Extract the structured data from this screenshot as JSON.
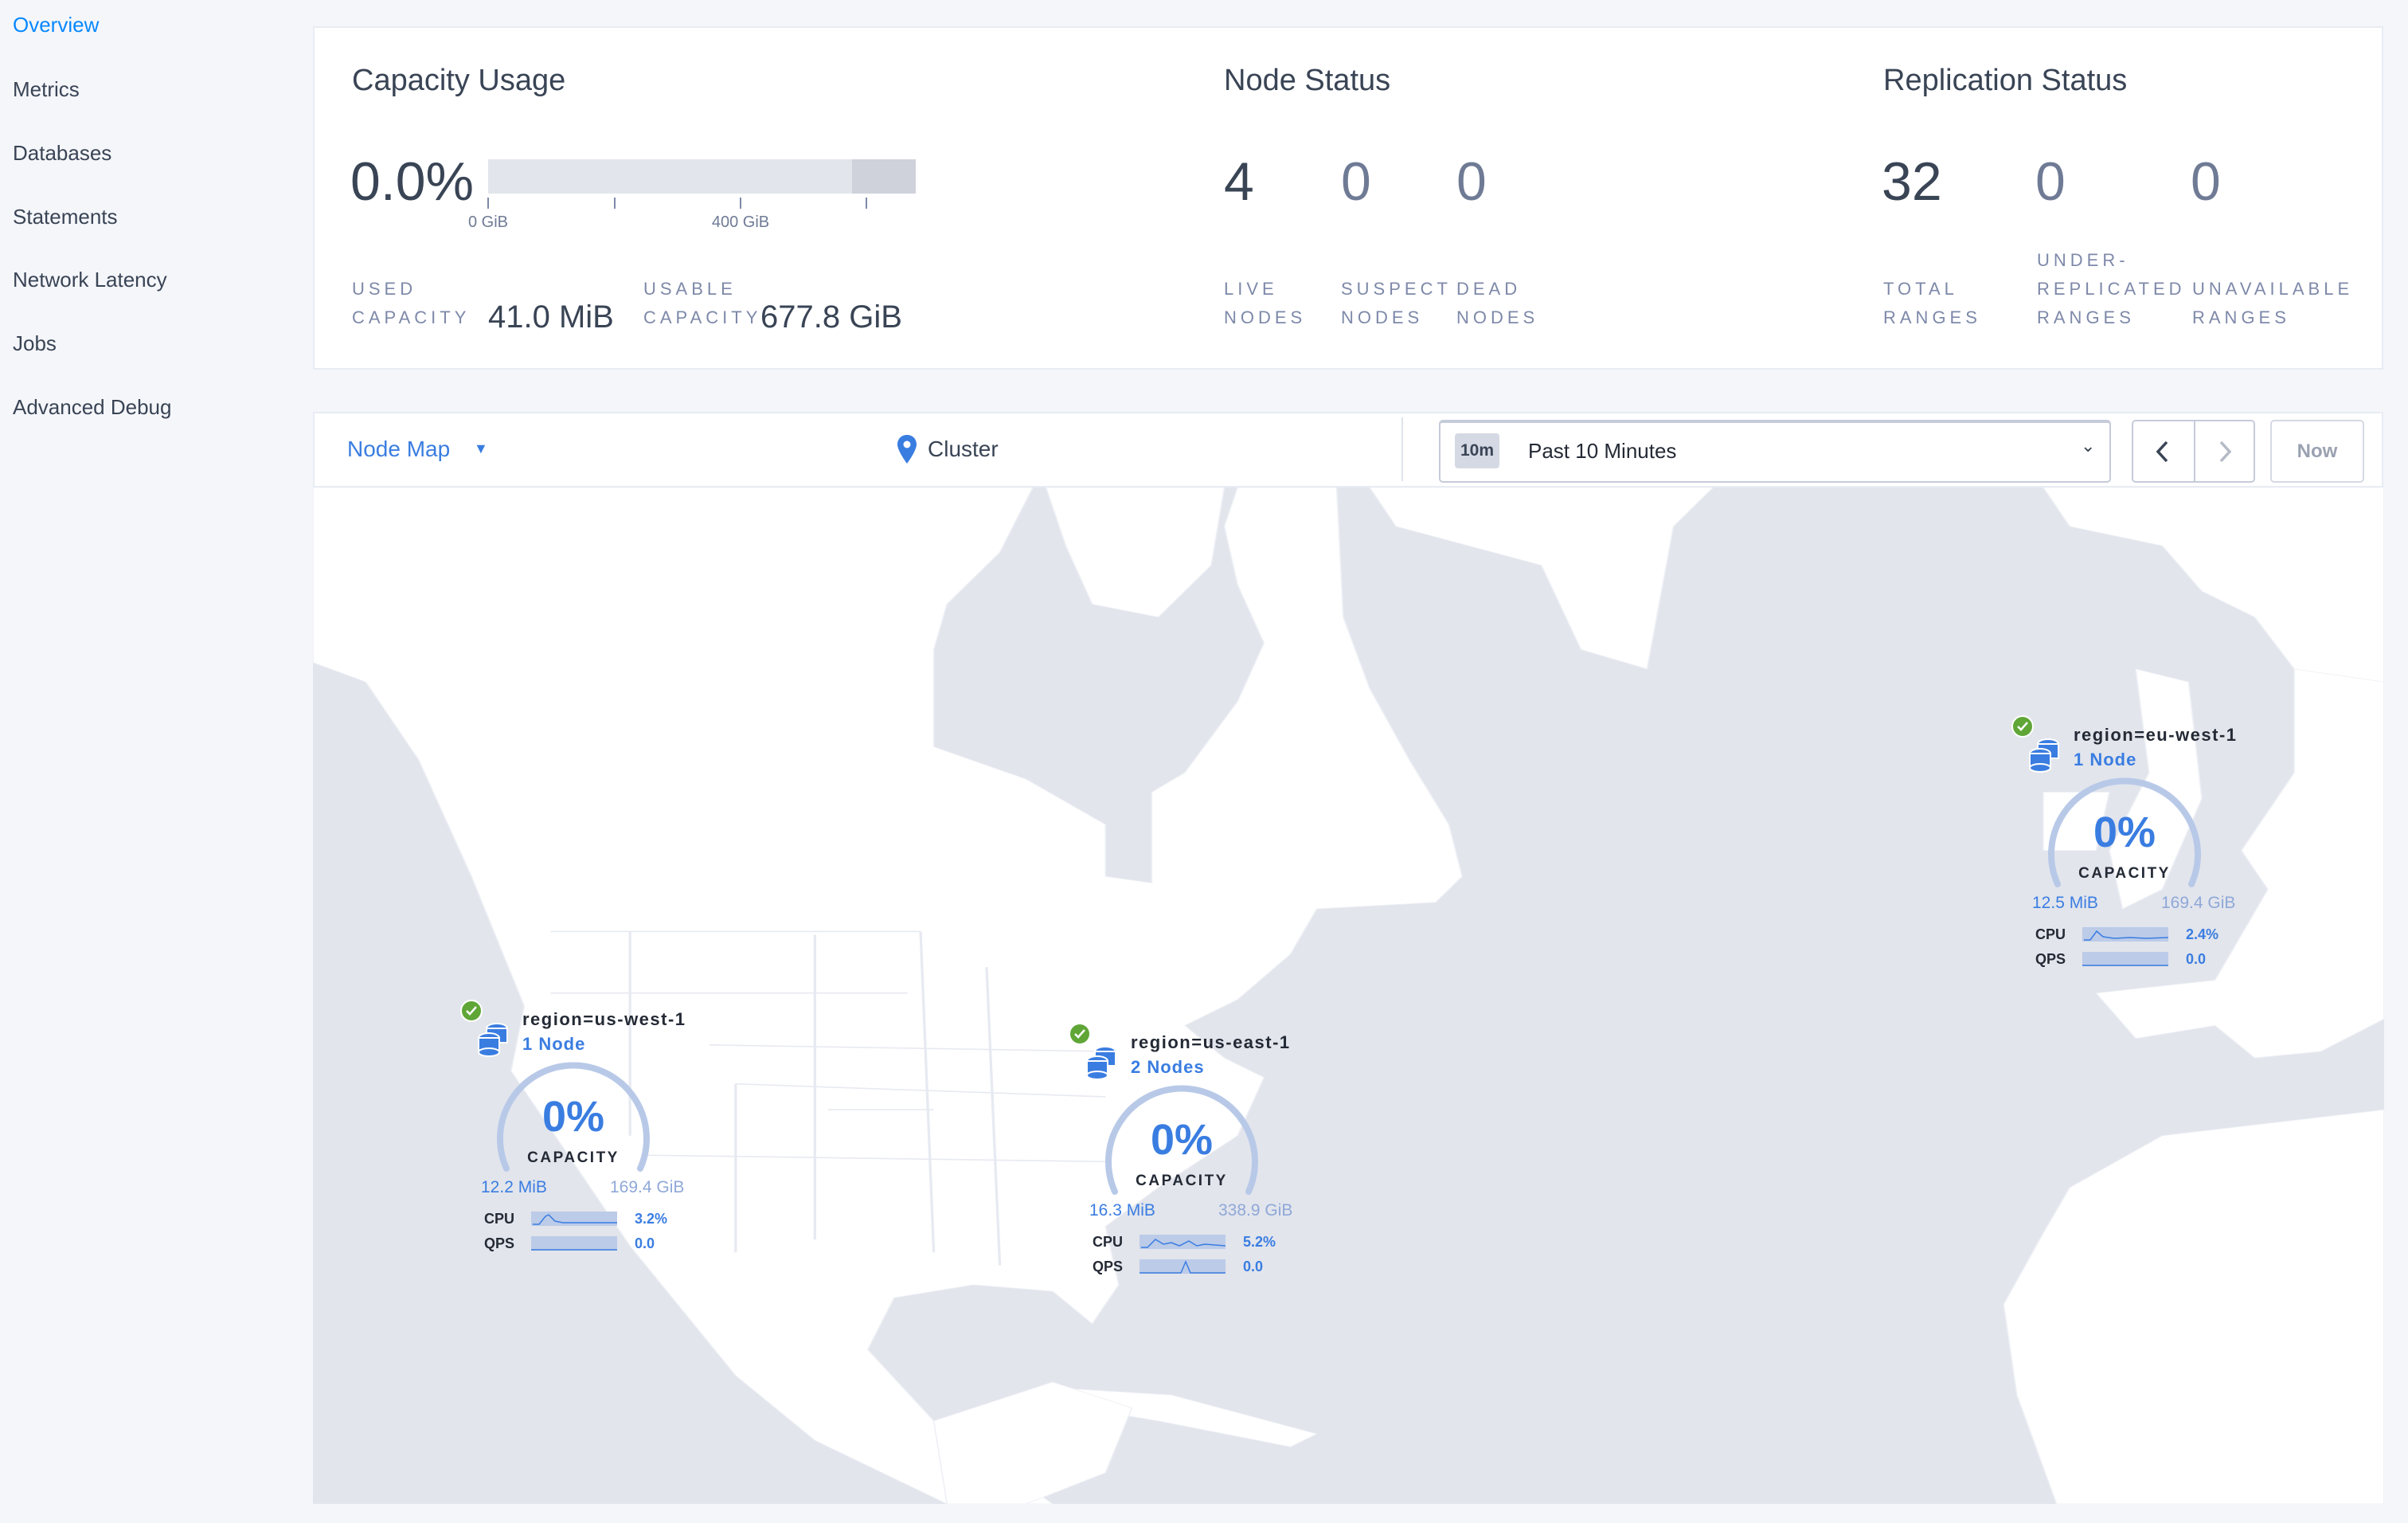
{
  "sidebar": {
    "items": [
      {
        "label": "Overview",
        "active": true
      },
      {
        "label": "Metrics"
      },
      {
        "label": "Databases"
      },
      {
        "label": "Statements"
      },
      {
        "label": "Network Latency"
      },
      {
        "label": "Jobs"
      },
      {
        "label": "Advanced Debug"
      }
    ]
  },
  "capacity": {
    "title": "Capacity Usage",
    "percent": "0.0%",
    "ticks": [
      "0 GiB",
      "400 GiB"
    ],
    "used_label": "USED\nCAPACITY",
    "used_value": "41.0 MiB",
    "usable_label": "USABLE\nCAPACITY",
    "usable_value": "677.8 GiB"
  },
  "node_status": {
    "title": "Node Status",
    "live": "4",
    "live_label": "LIVE\nNODES",
    "suspect": "0",
    "suspect_label": "SUSPECT\nNODES",
    "dead": "0",
    "dead_label": "DEAD\nNODES"
  },
  "replication": {
    "title": "Replication Status",
    "total": "32",
    "total_label": "TOTAL\nRANGES",
    "under": "0",
    "under_label": "UNDER-\nREPLICATED\nRANGES",
    "unavailable": "0",
    "unavailable_label": "UNAVAILABLE\nRANGES"
  },
  "map_header": {
    "view_label": "Node Map",
    "breadcrumb": "Cluster",
    "time_badge": "10m",
    "time_range": "Past 10 Minutes",
    "now_label": "Now"
  },
  "map": {
    "regions": [
      {
        "name": "region=us-west-1",
        "nodes": "1 Node",
        "capacity_pct": "0%",
        "capacity_label": "CAPACITY",
        "used": "12.2 MiB",
        "total": "169.4 GiB",
        "cpu_label": "CPU",
        "cpu": "3.2%",
        "qps_label": "QPS",
        "qps": "0.0",
        "status": "healthy"
      },
      {
        "name": "region=us-east-1",
        "nodes": "2 Nodes",
        "capacity_pct": "0%",
        "capacity_label": "CAPACITY",
        "used": "16.3 MiB",
        "total": "338.9 GiB",
        "cpu_label": "CPU",
        "cpu": "5.2%",
        "qps_label": "QPS",
        "qps": "0.0",
        "status": "healthy"
      },
      {
        "name": "region=eu-west-1",
        "nodes": "1 Node",
        "capacity_pct": "0%",
        "capacity_label": "CAPACITY",
        "used": "12.5 MiB",
        "total": "169.4 GiB",
        "cpu_label": "CPU",
        "cpu": "2.4%",
        "qps_label": "QPS",
        "qps": "0.0",
        "status": "healthy"
      }
    ]
  },
  "colors": {
    "accent": "#0788ff",
    "map_blue": "#3a7de1",
    "healthy": "#5fa637",
    "water": "#e2e5ec",
    "land": "#ffffff"
  }
}
